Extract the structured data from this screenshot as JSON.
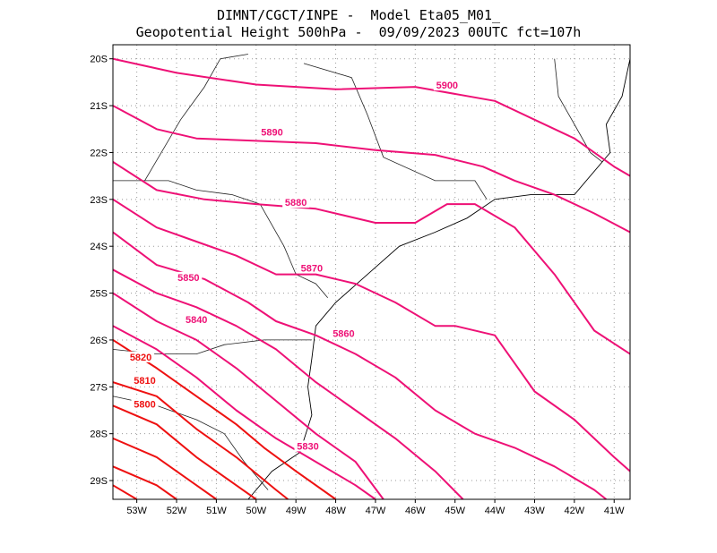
{
  "title": {
    "line1": "DIMNT/CGCT/INPE -  Model Eta05_M01_",
    "line2": "Geopotential Height 500hPa -  09/09/2023 00UTC fct=107h"
  },
  "map_data": {
    "type": "contour",
    "variable": "geopotential height 500hPa",
    "lon_range": [
      -53.6,
      -40.6
    ],
    "lat_range": [
      -29.4,
      -19.7
    ],
    "lon_ticks": [
      "53W",
      "52W",
      "51W",
      "50W",
      "49W",
      "48W",
      "47W",
      "46W",
      "45W",
      "44W",
      "43W",
      "42W",
      "41W"
    ],
    "lat_ticks": [
      "20S",
      "21S",
      "22S",
      "23S",
      "24S",
      "25S",
      "26S",
      "27S",
      "28S",
      "29S"
    ],
    "grid": "dotted",
    "colors": {
      "pink": "#ee1176",
      "red": "#ee1111",
      "coast": "#000000"
    },
    "contours": [
      {
        "level": "5900",
        "color": "pink",
        "label_at": [
          -45.2,
          -20.6
        ],
        "points": [
          [
            -53.6,
            -20.0
          ],
          [
            -52,
            -20.3
          ],
          [
            -50,
            -20.55
          ],
          [
            -48,
            -20.65
          ],
          [
            -46,
            -20.6
          ],
          [
            -44,
            -20.9
          ],
          [
            -43,
            -21.3
          ],
          [
            -42,
            -21.7
          ],
          [
            -41,
            -22.3
          ],
          [
            -40.6,
            -22.5
          ]
        ]
      },
      {
        "level": "5890",
        "color": "pink",
        "label_at": [
          -49.6,
          -21.6
        ],
        "points": [
          [
            -53.6,
            -21.0
          ],
          [
            -52.5,
            -21.5
          ],
          [
            -51.5,
            -21.7
          ],
          [
            -50,
            -21.75
          ],
          [
            -48.5,
            -21.8
          ],
          [
            -47,
            -21.95
          ],
          [
            -45.5,
            -22.05
          ],
          [
            -44.3,
            -22.3
          ],
          [
            -43.5,
            -22.6
          ],
          [
            -42.5,
            -22.9
          ],
          [
            -41.5,
            -23.3
          ],
          [
            -40.6,
            -23.7
          ]
        ]
      },
      {
        "level": "5880",
        "color": "pink",
        "label_at": [
          -49.0,
          -23.1
        ],
        "points": [
          [
            -53.6,
            -22.2
          ],
          [
            -52.5,
            -22.8
          ],
          [
            -51.3,
            -23.0
          ],
          [
            -50,
            -23.1
          ],
          [
            -48.5,
            -23.2
          ],
          [
            -47,
            -23.5
          ],
          [
            -46,
            -23.5
          ],
          [
            -45.2,
            -23.1
          ],
          [
            -44.5,
            -23.1
          ],
          [
            -43.5,
            -23.6
          ],
          [
            -42.5,
            -24.6
          ],
          [
            -41.5,
            -25.8
          ],
          [
            -40.6,
            -26.3
          ]
        ]
      },
      {
        "level": "5870",
        "color": "pink",
        "label_at": [
          -48.6,
          -24.5
        ],
        "points": [
          [
            -53.6,
            -23.0
          ],
          [
            -52.5,
            -23.6
          ],
          [
            -51.5,
            -23.9
          ],
          [
            -50.5,
            -24.2
          ],
          [
            -49.5,
            -24.6
          ],
          [
            -48.5,
            -24.6
          ],
          [
            -47.5,
            -24.8
          ],
          [
            -46.5,
            -25.2
          ],
          [
            -45.5,
            -25.7
          ],
          [
            -45,
            -25.7
          ],
          [
            -44,
            -25.9
          ],
          [
            -43.5,
            -26.5
          ],
          [
            -43,
            -27.1
          ],
          [
            -42,
            -27.7
          ],
          [
            -41,
            -28.5
          ],
          [
            -40.6,
            -28.8
          ]
        ]
      },
      {
        "level": "5860",
        "color": "pink",
        "label_at": [
          -47.8,
          -25.9
        ],
        "points": [
          [
            -53.6,
            -23.7
          ],
          [
            -52.5,
            -24.4
          ],
          [
            -51.3,
            -24.7
          ],
          [
            -50.2,
            -25.2
          ],
          [
            -49.5,
            -25.6
          ],
          [
            -48.5,
            -25.9
          ],
          [
            -47.5,
            -26.3
          ],
          [
            -46.5,
            -26.8
          ],
          [
            -45.5,
            -27.5
          ],
          [
            -44.5,
            -28.0
          ],
          [
            -43.5,
            -28.3
          ],
          [
            -42.5,
            -28.7
          ],
          [
            -41.5,
            -29.2
          ],
          [
            -41.2,
            -29.4
          ]
        ]
      },
      {
        "level": "5850",
        "color": "pink",
        "label_at": [
          -51.7,
          -24.7
        ],
        "points": [
          [
            -53.6,
            -24.5
          ],
          [
            -52.5,
            -25.0
          ],
          [
            -51.5,
            -25.3
          ],
          [
            -50.5,
            -25.7
          ],
          [
            -49.5,
            -26.2
          ],
          [
            -48.5,
            -26.9
          ],
          [
            -47.5,
            -27.5
          ],
          [
            -46.5,
            -28.1
          ],
          [
            -45.5,
            -28.8
          ],
          [
            -44.8,
            -29.4
          ]
        ]
      },
      {
        "level": "5840",
        "color": "pink",
        "label_at": [
          -51.5,
          -25.6
        ],
        "points": [
          [
            -53.6,
            -25.0
          ],
          [
            -52.5,
            -25.6
          ],
          [
            -51.5,
            -26.0
          ],
          [
            -50.5,
            -26.6
          ],
          [
            -49.5,
            -27.3
          ],
          [
            -48.5,
            -28.0
          ],
          [
            -47.5,
            -28.6
          ],
          [
            -46.8,
            -29.4
          ]
        ]
      },
      {
        "level": "5830",
        "color": "pink",
        "label_at": [
          -48.7,
          -28.3
        ],
        "points": [
          [
            -53.6,
            -25.7
          ],
          [
            -52.5,
            -26.2
          ],
          [
            -51.5,
            -26.8
          ],
          [
            -50.5,
            -27.5
          ],
          [
            -49.5,
            -28.1
          ],
          [
            -48.5,
            -28.6
          ],
          [
            -47.5,
            -29.1
          ],
          [
            -47.0,
            -29.4
          ]
        ]
      },
      {
        "level": "5820",
        "color": "red",
        "label_at": [
          -52.9,
          -26.4
        ],
        "points": [
          [
            -53.6,
            -26.0
          ],
          [
            -52.5,
            -26.6
          ],
          [
            -51.5,
            -27.2
          ],
          [
            -50.5,
            -27.8
          ],
          [
            -49.8,
            -28.3
          ],
          [
            -49.0,
            -28.8
          ],
          [
            -48.0,
            -29.4
          ]
        ]
      },
      {
        "level": "5810",
        "color": "red",
        "label_at": [
          -52.8,
          -26.9
        ],
        "points": [
          [
            -53.6,
            -26.9
          ],
          [
            -52.5,
            -27.2
          ],
          [
            -51.5,
            -27.9
          ],
          [
            -50.5,
            -28.5
          ],
          [
            -49.5,
            -29.2
          ],
          [
            -49.2,
            -29.4
          ]
        ]
      },
      {
        "level": "5800",
        "color": "red",
        "label_at": [
          -52.8,
          -27.4
        ],
        "points": [
          [
            -53.6,
            -27.4
          ],
          [
            -52.5,
            -27.8
          ],
          [
            -51.5,
            -28.5
          ],
          [
            -50.5,
            -29.1
          ],
          [
            -50.0,
            -29.4
          ]
        ]
      },
      {
        "level": "",
        "color": "red",
        "points": [
          [
            -53.6,
            -28.1
          ],
          [
            -52.5,
            -28.5
          ],
          [
            -51.5,
            -29.1
          ],
          [
            -51.0,
            -29.4
          ]
        ]
      },
      {
        "level": "",
        "color": "red",
        "points": [
          [
            -53.6,
            -28.7
          ],
          [
            -52.5,
            -29.1
          ],
          [
            -52.0,
            -29.4
          ]
        ]
      },
      {
        "level": "",
        "color": "red",
        "points": [
          [
            -53.6,
            -29.1
          ],
          [
            -53.0,
            -29.4
          ]
        ]
      }
    ],
    "coastline": [
      [
        -40.6,
        -20.0
      ],
      [
        -40.8,
        -20.8
      ],
      [
        -41.2,
        -21.4
      ],
      [
        -41.1,
        -22.0
      ],
      [
        -42.0,
        -22.9
      ],
      [
        -43.1,
        -22.9
      ],
      [
        -44.0,
        -23.0
      ],
      [
        -44.7,
        -23.4
      ],
      [
        -45.5,
        -23.7
      ],
      [
        -46.4,
        -24.0
      ],
      [
        -47.2,
        -24.6
      ],
      [
        -48.0,
        -25.2
      ],
      [
        -48.5,
        -25.7
      ],
      [
        -48.6,
        -26.4
      ],
      [
        -48.7,
        -27.0
      ],
      [
        -48.6,
        -27.6
      ],
      [
        -48.9,
        -28.4
      ],
      [
        -49.6,
        -28.8
      ],
      [
        -50.2,
        -29.4
      ]
    ],
    "borders": [
      [
        [
          -53.6,
          -22.6
        ],
        [
          -52.8,
          -22.6
        ],
        [
          -52.2,
          -22.6
        ],
        [
          -51.5,
          -22.8
        ],
        [
          -50.6,
          -22.9
        ],
        [
          -49.9,
          -23.1
        ],
        [
          -49.3,
          -24.0
        ],
        [
          -49.0,
          -24.6
        ],
        [
          -48.5,
          -24.8
        ],
        [
          -48.2,
          -25.1
        ]
      ],
      [
        [
          -53.6,
          -26.2
        ],
        [
          -52.5,
          -26.3
        ],
        [
          -51.5,
          -26.3
        ],
        [
          -50.8,
          -26.1
        ],
        [
          -49.8,
          -26.0
        ],
        [
          -49.0,
          -26.0
        ],
        [
          -48.6,
          -26.0
        ]
      ],
      [
        [
          -52.8,
          -22.6
        ],
        [
          -51.9,
          -21.3
        ],
        [
          -51.3,
          -20.6
        ],
        [
          -50.9,
          -20.0
        ],
        [
          -50.2,
          -19.9
        ]
      ],
      [
        [
          -48.8,
          -20.1
        ],
        [
          -47.6,
          -20.4
        ],
        [
          -47.2,
          -21.2
        ],
        [
          -46.8,
          -22.1
        ],
        [
          -45.5,
          -22.6
        ],
        [
          -44.5,
          -22.6
        ],
        [
          -44.2,
          -23.0
        ]
      ],
      [
        [
          -42.5,
          -20.0
        ],
        [
          -42.4,
          -20.8
        ],
        [
          -42.0,
          -21.4
        ],
        [
          -41.6,
          -22.0
        ],
        [
          -41.3,
          -22.2
        ]
      ],
      [
        [
          -53.6,
          -27.2
        ],
        [
          -52.5,
          -27.4
        ],
        [
          -51.5,
          -27.7
        ],
        [
          -50.8,
          -28.0
        ],
        [
          -50.3,
          -28.6
        ],
        [
          -49.7,
          -29.2
        ]
      ]
    ]
  }
}
